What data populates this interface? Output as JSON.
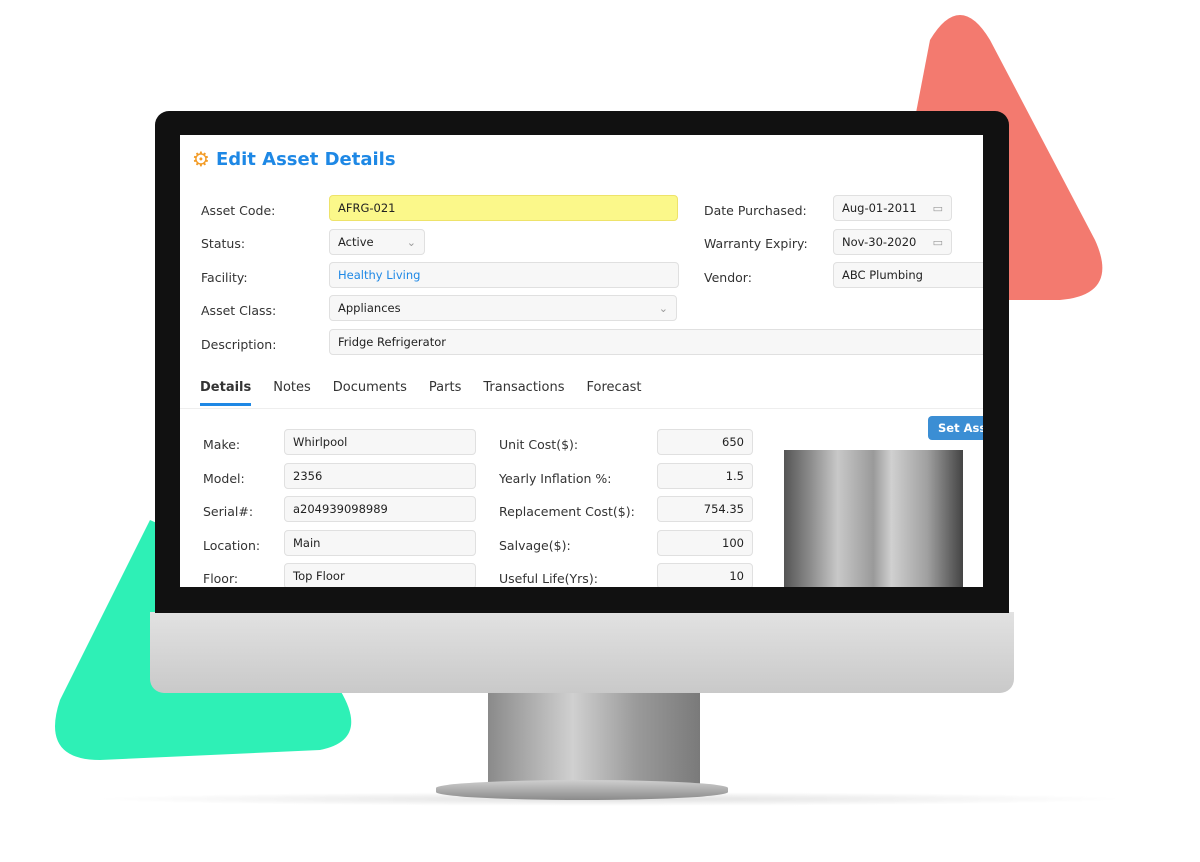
{
  "colors": {
    "accent": "#1e88e5",
    "highlight": "#fbf88a",
    "deco_red": "#f37a6f",
    "deco_green": "#2ef0b6"
  },
  "header": {
    "title": "Edit Asset Details",
    "icon": "gear-check-icon"
  },
  "form": {
    "asset_code": {
      "label": "Asset Code:",
      "value": "AFRG-021"
    },
    "status": {
      "label": "Status:",
      "value": "Active"
    },
    "facility": {
      "label": "Facility:",
      "value": "Healthy Living"
    },
    "asset_class": {
      "label": "Asset Class:",
      "value": "Appliances"
    },
    "description": {
      "label": "Description:",
      "value": "Fridge Refrigerator"
    },
    "date_purchased": {
      "label": "Date Purchased:",
      "value": "Aug-01-2011"
    },
    "warranty_expiry": {
      "label": "Warranty Expiry:",
      "value": "Nov-30-2020"
    },
    "vendor": {
      "label": "Vendor:",
      "value": "ABC Plumbing"
    }
  },
  "tabs": [
    {
      "label": "Details",
      "active": true
    },
    {
      "label": "Notes"
    },
    {
      "label": "Documents"
    },
    {
      "label": "Parts"
    },
    {
      "label": "Transactions"
    },
    {
      "label": "Forecast"
    }
  ],
  "details": {
    "left": [
      {
        "label": "Make:",
        "value": "Whirlpool"
      },
      {
        "label": "Model:",
        "value": "2356"
      },
      {
        "label": "Serial#:",
        "value": "a204939098989"
      },
      {
        "label": "Location:",
        "value": "Main"
      },
      {
        "label": "Floor:",
        "value": "Top Floor"
      }
    ],
    "right": [
      {
        "label": "Unit Cost($):",
        "value": "650"
      },
      {
        "label": "Yearly Inflation %:",
        "value": "1.5"
      },
      {
        "label": "Replacement Cost($):",
        "value": "754.35"
      },
      {
        "label": "Salvage($):",
        "value": "100"
      },
      {
        "label": "Useful Life(Yrs):",
        "value": "10"
      }
    ],
    "set_button": "Set Asset"
  }
}
